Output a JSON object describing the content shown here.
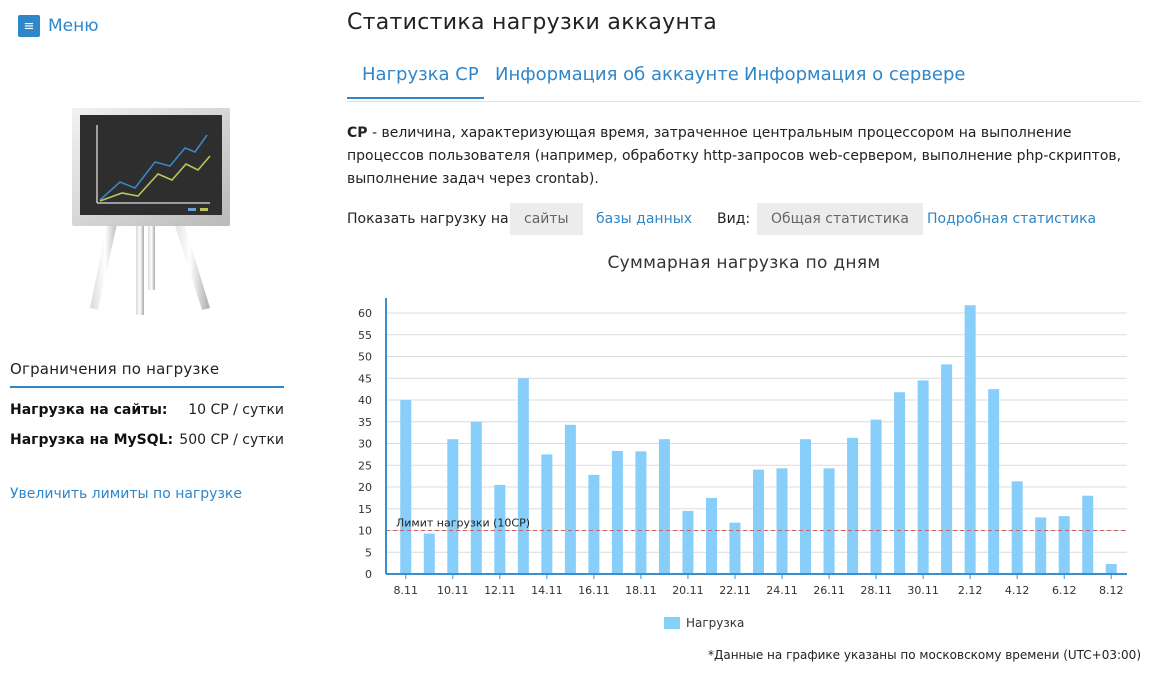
{
  "menu": {
    "label": "Меню",
    "icon": "hamburger-icon"
  },
  "sidebar": {
    "limits_title": "Ограничения по нагрузке",
    "limits": [
      {
        "name": "Нагрузка на сайты:",
        "value": "10 CP / сутки"
      },
      {
        "name": "Нагрузка на MySQL:",
        "value": "500 CP / сутки"
      }
    ],
    "increase_link": "Увеличить лимиты по нагрузке"
  },
  "page": {
    "title": "Статистика нагрузки аккаунта"
  },
  "tabs": [
    {
      "label": "Нагрузка CP",
      "active": true
    },
    {
      "label": "Информация об аккаунте",
      "active": false
    },
    {
      "label": "Информация о сервере",
      "active": false
    }
  ],
  "description": {
    "term": "CP",
    "text": " - величина, характеризующая время, затраченное центральным процессором на выполнение процессов пользователя (например, обработку http-запросов web-сервером, выполнение php-скриптов, выполнение задач через crontab)."
  },
  "filters": {
    "show_label": "Показать нагрузку на:",
    "show_options": [
      {
        "label": "сайты",
        "selected": true
      },
      {
        "label": "базы данных",
        "selected": false
      }
    ],
    "view_label": "Вид:",
    "view_options": [
      {
        "label": "Общая статистика",
        "selected": true
      },
      {
        "label": "Подробная статистика",
        "selected": false
      }
    ]
  },
  "chart_data": {
    "type": "bar",
    "title": "Суммарная нагрузка по дням",
    "categories": [
      "8.11",
      "9.11",
      "10.11",
      "11.11",
      "12.11",
      "13.11",
      "14.11",
      "15.11",
      "16.11",
      "17.11",
      "18.11",
      "19.11",
      "20.11",
      "21.11",
      "22.11",
      "23.11",
      "24.11",
      "25.11",
      "26.11",
      "27.11",
      "28.11",
      "29.11",
      "30.11",
      "1.12",
      "2.12",
      "3.12",
      "4.12",
      "5.12",
      "6.12",
      "7.12",
      "8.12"
    ],
    "x_tick_labels": [
      "8.11",
      "10.11",
      "12.11",
      "14.11",
      "16.11",
      "18.11",
      "20.11",
      "22.11",
      "24.11",
      "26.11",
      "28.11",
      "30.11",
      "2.12",
      "4.12",
      "6.12",
      "8.12"
    ],
    "series": [
      {
        "name": "Нагрузка",
        "color": "#87cefa",
        "values": [
          40,
          9.3,
          31,
          35,
          20.5,
          45,
          27.5,
          34.3,
          22.8,
          28.3,
          28.2,
          31,
          14.5,
          17.5,
          11.8,
          24,
          24.3,
          31,
          24.3,
          31.3,
          35.5,
          41.8,
          44.5,
          48.2,
          61.8,
          42.5,
          21.3,
          13,
          13.3,
          18,
          2.3
        ]
      }
    ],
    "y_ticks": [
      0,
      5,
      10,
      15,
      20,
      25,
      30,
      35,
      40,
      45,
      50,
      55,
      60
    ],
    "ylim": [
      0,
      63
    ],
    "limit_line": {
      "value": 10,
      "label": "Лимит нагрузки (10CP)",
      "color": "#d06060"
    },
    "grid": true,
    "legend_position": "bottom-center"
  },
  "footnote": "*Данные на графике указаны по московскому времени (UTC+03:00)"
}
